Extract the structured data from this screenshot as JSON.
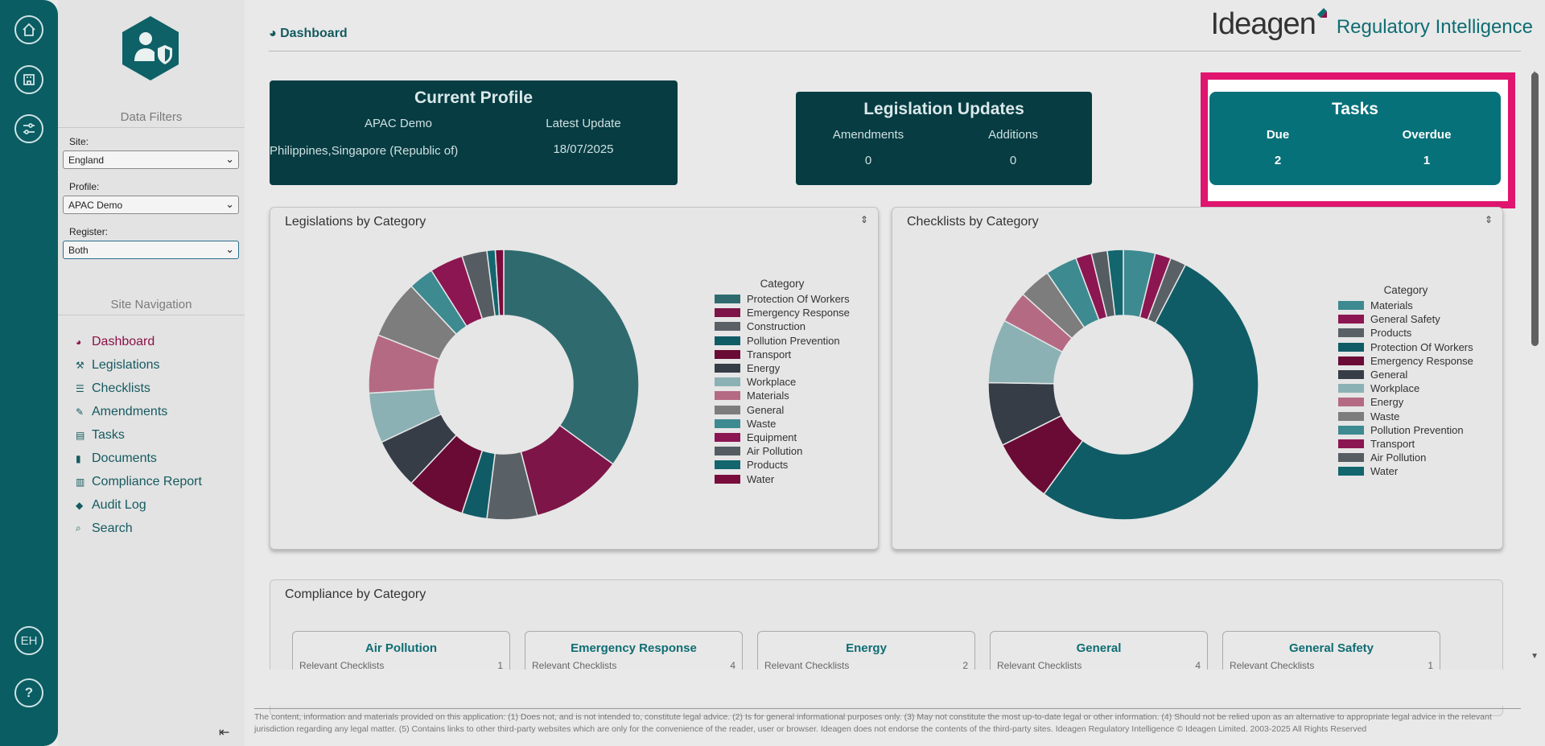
{
  "rail": {
    "user_initials": "EH",
    "help": "?"
  },
  "filters": {
    "heading": "Data Filters",
    "site_label": "Site:",
    "site_value": "England",
    "profile_label": "Profile:",
    "profile_value": "APAC Demo",
    "register_label": "Register:",
    "register_value": "Both"
  },
  "nav": {
    "heading": "Site Navigation",
    "items": [
      {
        "label": "Dashboard",
        "icon": "dashboard-icon"
      },
      {
        "label": "Legislations",
        "icon": "gavel-icon"
      },
      {
        "label": "Checklists",
        "icon": "list-icon"
      },
      {
        "label": "Amendments",
        "icon": "edit-icon"
      },
      {
        "label": "Tasks",
        "icon": "tasks-icon"
      },
      {
        "label": "Documents",
        "icon": "document-icon"
      },
      {
        "label": "Compliance Report",
        "icon": "bar-chart-icon"
      },
      {
        "label": "Audit Log",
        "icon": "tags-icon"
      },
      {
        "label": "Search",
        "icon": "search-icon"
      }
    ]
  },
  "header": {
    "breadcrumb": "Dashboard",
    "brand_name": "Ideagen",
    "brand_sub": "Regulatory Intelligence"
  },
  "profile_card": {
    "title": "Current Profile",
    "col1_label": "APAC Demo",
    "col1_value": "Philippines,Singapore (Republic of)",
    "col2_label": "Latest Update",
    "col2_value": "18/07/2025"
  },
  "legislation_card": {
    "title": "Legislation Updates",
    "amendments_label": "Amendments",
    "amendments_value": "0",
    "additions_label": "Additions",
    "additions_value": "0"
  },
  "tasks_card": {
    "title": "Tasks",
    "due_label": "Due",
    "due_value": "2",
    "overdue_label": "Overdue",
    "overdue_value": "1"
  },
  "chart_data": [
    {
      "type": "pie",
      "title": "Legislations by Category",
      "legend_title": "Category",
      "categories": [
        "Protection Of Workers",
        "Emergency Response",
        "Construction",
        "Pollution Prevention",
        "Transport",
        "Energy",
        "Workplace",
        "Materials",
        "General",
        "Waste",
        "Equipment",
        "Air Pollution",
        "Products",
        "Water"
      ],
      "values": [
        35,
        11,
        6,
        3,
        7,
        6,
        6,
        7,
        7,
        3,
        4,
        3,
        1,
        1
      ],
      "colors": [
        "#2f6b6e",
        "#7d1548",
        "#5a6166",
        "#0f5c66",
        "#6a0b35",
        "#363d47",
        "#8bb1b4",
        "#b56a83",
        "#7d7d7d",
        "#3d8a91",
        "#8c1651",
        "#555d63",
        "#13666e",
        "#7a0c3c"
      ]
    },
    {
      "type": "pie",
      "title": "Checklists by Category",
      "legend_title": "Category",
      "categories": [
        "Materials",
        "General Safety",
        "Products",
        "Protection Of Workers",
        "Emergency Response",
        "General",
        "Workplace",
        "Energy",
        "Waste",
        "Pollution Prevention",
        "Transport",
        "Air Pollution",
        "Water"
      ],
      "values": [
        4,
        2,
        2,
        55,
        8,
        8,
        8,
        4,
        4,
        4,
        2,
        2,
        2
      ],
      "colors": [
        "#3d8a91",
        "#8c1651",
        "#5a6166",
        "#0f5c66",
        "#6a0b35",
        "#363d47",
        "#8bb1b4",
        "#b56a83",
        "#7d7d7d",
        "#3d8a91",
        "#8c1651",
        "#555d63",
        "#13666e"
      ]
    }
  ],
  "compliance": {
    "title": "Compliance by Category",
    "row_label": "Relevant Checklists",
    "cards": [
      {
        "title": "Air Pollution",
        "value": "1"
      },
      {
        "title": "Emergency Response",
        "value": "4"
      },
      {
        "title": "Energy",
        "value": "2"
      },
      {
        "title": "General",
        "value": "4"
      },
      {
        "title": "General Safety",
        "value": "1"
      }
    ]
  },
  "footer": {
    "text": "The content, information and materials provided on this application: (1) Does not, and is not intended to, constitute legal advice. (2) Is for general informational purposes only. (3) May not constitute the most up-to-date legal or other information. (4) Should not be relied upon as an alternative to appropriate legal advice in the relevant jurisdiction regarding any legal matter. (5) Contains links to other third-party websites which are only for the convenience of the reader, user or browser. Ideagen does not endorse the contents of the third-party sites. Ideagen Regulatory Intelligence © Ideagen Limited. 2003-2025 All Rights Reserved"
  }
}
